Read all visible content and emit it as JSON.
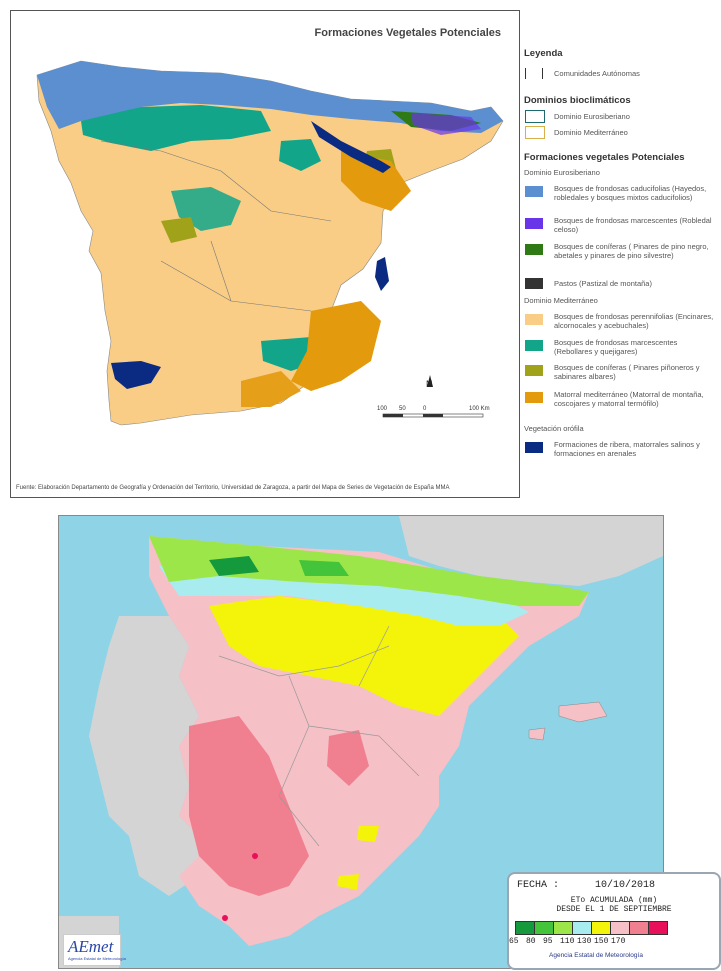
{
  "map1": {
    "title": "Formaciones Vegetales Potenciales",
    "source": "Fuente: Elaboración Departamento de Geografía y Ordenación del Territorio, Universidad de Zaragoza, a partir del Mapa de Series de Vegetación de España MMA",
    "scale_labels": [
      "100",
      "50",
      "0",
      "100 Km"
    ],
    "north_label": "N"
  },
  "legend": {
    "heading": "Leyenda",
    "comunidades": "Comunidades Autónomas",
    "dominios_heading": "Dominios bioclimáticos",
    "dominio_eurosiberiano": "Dominio Eurosiberiano",
    "dominio_mediterraneo": "Dominio Mediterráneo",
    "formaciones_heading": "Formaciones vegetales Potenciales",
    "sub_eurosiberiano": "Dominio Eurosiberiano",
    "sub_mediterraneo": "Dominio Mediterráneo",
    "sub_orofilo": "Vegetación orófila",
    "items": [
      {
        "label": "Bosques de frondosas caducifolias (Hayedos, robledales y bosques mixtos caducifolios)",
        "color": "#5b8fd0"
      },
      {
        "label": "Bosques de frondosas marcescentes (Robledal celoso)",
        "color": "#6a34e8"
      },
      {
        "label": "Bosques de coníferas ( Pinares de pino negro, abetales y pinares de pino silvestre)",
        "color": "#2f7a15"
      },
      {
        "label": "Pastos (Pastizal de montaña)",
        "color": "#333333"
      },
      {
        "label": "Bosques de frondosas perennifolias (Encinares, alcornocales y acebuchales)",
        "color": "#f9cd85"
      },
      {
        "label": "Bosques de frondosas marcescentes (Rebollares y quejigares)",
        "color": "#12a58a"
      },
      {
        "label": "Bosques de coníferas ( Pinares piñoneros y sabinares albares)",
        "color": "#a0a219"
      },
      {
        "label": "Matorral mediterráneo (Matorral de montaña, coscojares y matorral termófilo)",
        "color": "#e39a0c"
      },
      {
        "label": "Formaciones de ribera, matorrales salinos y formaciones en arenales",
        "color": "#0b2a82"
      }
    ]
  },
  "map2": {
    "fecha_label": "FECHA :",
    "fecha_value": "10/10/2018",
    "eto_line1": "ETo ACUMULADA (mm)",
    "eto_line2": "DESDE EL 1 DE SEPTIEMBRE",
    "colorbar": [
      "#149a3c",
      "#44c43a",
      "#9ce64a",
      "#a8ecf0",
      "#f4f40a",
      "#f5c0c6",
      "#f07f8f",
      "#e8105a"
    ],
    "ticks": [
      "65",
      "80",
      "95",
      "110",
      "130",
      "150",
      "170"
    ],
    "agency": "Agencia Estatal de Meteorología",
    "logo": "AEmet",
    "logo_sub": "Agencia Estatal de Meteorología"
  }
}
